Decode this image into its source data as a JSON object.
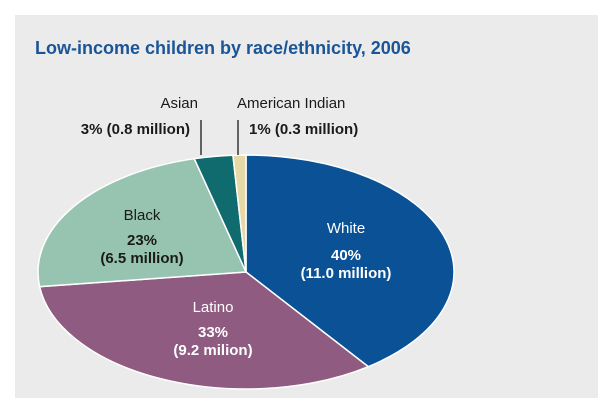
{
  "chart_data": {
    "type": "pie",
    "title": "Low-income children by race/ethnicity, 2006",
    "slices": [
      {
        "label": "White",
        "percent": 40,
        "value_text": "40%",
        "count_text": "(11.0 million)",
        "color": "#0a5196"
      },
      {
        "label": "Latino",
        "percent": 33,
        "value_text": "33%",
        "count_text": "(9.2 milion)",
        "color": "#8f5b80"
      },
      {
        "label": "Black",
        "percent": 23,
        "value_text": "23%",
        "count_text": "(6.5 million)",
        "color": "#96c4b0"
      },
      {
        "label": "Asian",
        "percent": 3,
        "value_text": "3% (0.8 million)",
        "count_text": "",
        "color": "#0f6b6e"
      },
      {
        "label": "American Indian",
        "percent": 1,
        "value_text": "1% (0.3 million)",
        "count_text": "",
        "color": "#e6d9a6"
      }
    ]
  },
  "colors": {
    "panel_background": "#ebebeb",
    "title": "#1a5597",
    "inner_label": "#ffffff",
    "outer_label": "#1a1a1a"
  }
}
